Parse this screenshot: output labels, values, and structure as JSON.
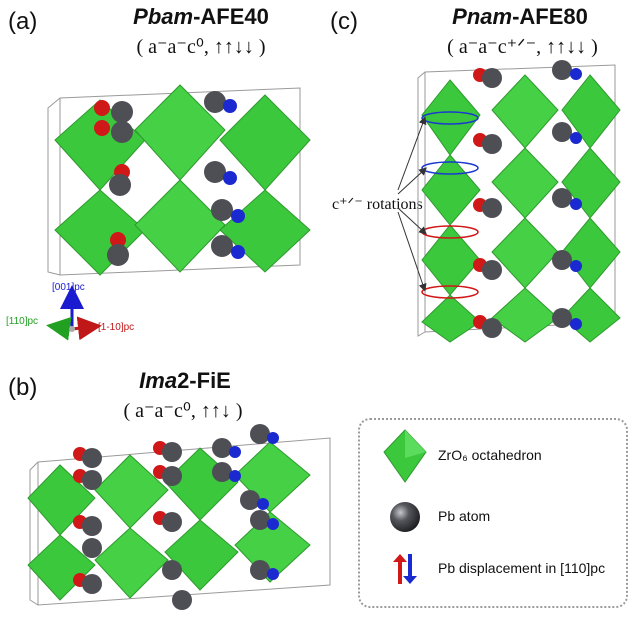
{
  "panels": {
    "a": {
      "letter": "(a)",
      "title_italic": "Pbam",
      "title_rest": "-AFE40",
      "notation": "( a⁻a⁻c⁰,  ↑↑↓↓ )"
    },
    "b": {
      "letter": "(b)",
      "title_italic": "Ima",
      "title_rest": "2-FiE",
      "notation": "( a⁻a⁻c⁰,  ↑↑↓ )"
    },
    "c": {
      "letter": "(c)",
      "title_italic": "Pnam",
      "title_rest": "-AFE80",
      "notation": "( a⁻a⁻c⁺ᐟ⁻,  ↑↑↓↓ )",
      "rotation_label": "c⁺ᐟ⁻ rotations"
    }
  },
  "axes": {
    "z": "[001]pc",
    "x_left": "[110]pc",
    "x_right": "[1-10]pc"
  },
  "legend": {
    "octahedron": "ZrO₆ octahedron",
    "atom": "Pb atom",
    "displacement": "Pb displacement in [110]pc"
  },
  "colors": {
    "octahedron": "#3cc83c",
    "atom": "#55575d",
    "up_arrow": "#d01818",
    "down_arrow": "#1a2ad0",
    "cell_line": "#9a9a9a",
    "axis_z": "#1a1ad0",
    "axis_x_left": "#22a022",
    "axis_x_right": "#c01818"
  }
}
